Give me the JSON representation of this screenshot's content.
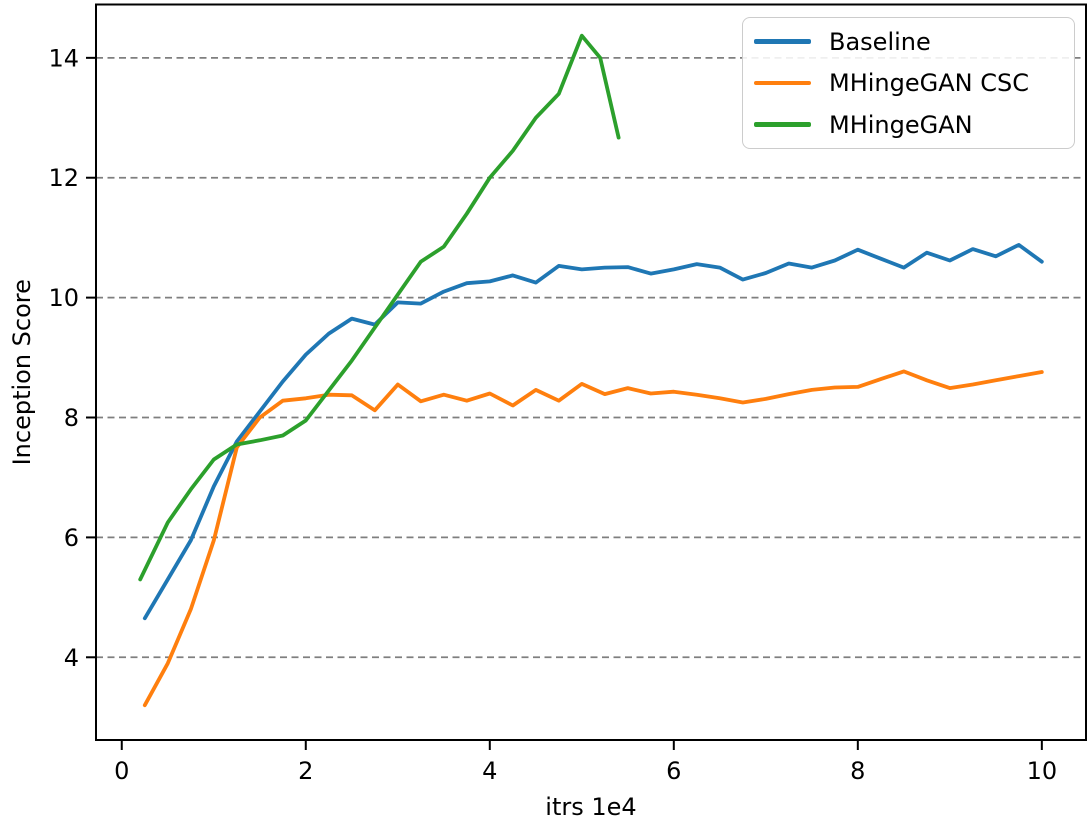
{
  "figure": {
    "background": "#ffffff"
  },
  "chart_data": {
    "type": "line",
    "title": "",
    "xlabel": "itrs 1e4",
    "ylabel": "Inception Score",
    "xlim": [
      -0.28,
      10.48
    ],
    "ylim": [
      2.62,
      14.89
    ],
    "grid": {
      "axis": "y",
      "style": "dashed",
      "color": "#7f7f7f"
    },
    "legend_position": "upper-right",
    "xticks": {
      "values": [
        0,
        2,
        4,
        6,
        8,
        10
      ],
      "labels": [
        "0",
        "2",
        "4",
        "6",
        "8",
        "10"
      ]
    },
    "yticks": {
      "values": [
        4,
        6,
        8,
        10,
        12,
        14
      ],
      "labels": [
        "4",
        "6",
        "8",
        "10",
        "12",
        "14"
      ]
    },
    "series": [
      {
        "name": "Baseline",
        "color": "#1f77b4",
        "x": [
          0.25,
          0.5,
          0.75,
          1.0,
          1.25,
          1.5,
          1.75,
          2.0,
          2.25,
          2.5,
          2.75,
          3.0,
          3.25,
          3.5,
          3.75,
          4.0,
          4.25,
          4.5,
          4.75,
          5.0,
          5.25,
          5.5,
          5.75,
          6.0,
          6.25,
          6.5,
          6.75,
          7.0,
          7.25,
          7.5,
          7.75,
          8.0,
          8.25,
          8.5,
          8.75,
          9.0,
          9.25,
          9.5,
          9.75,
          10.0
        ],
        "y": [
          4.65,
          5.3,
          5.95,
          6.85,
          7.6,
          8.1,
          8.6,
          9.05,
          9.4,
          9.65,
          9.55,
          9.92,
          9.9,
          10.1,
          10.24,
          10.27,
          10.37,
          10.25,
          10.53,
          10.47,
          10.5,
          10.51,
          10.4,
          10.47,
          10.56,
          10.5,
          10.3,
          10.41,
          10.57,
          10.5,
          10.62,
          10.8,
          10.65,
          10.5,
          10.75,
          10.62,
          10.81,
          10.69,
          10.88,
          10.6
        ]
      },
      {
        "name": "MHingeGAN CSC",
        "color": "#ff7f0e",
        "x": [
          0.25,
          0.5,
          0.75,
          1.0,
          1.25,
          1.5,
          1.75,
          2.0,
          2.25,
          2.5,
          2.75,
          3.0,
          3.25,
          3.5,
          3.75,
          4.0,
          4.25,
          4.5,
          4.75,
          5.0,
          5.25,
          5.5,
          5.75,
          6.0,
          6.25,
          6.5,
          6.75,
          7.0,
          7.25,
          7.5,
          7.75,
          8.0,
          8.25,
          8.5,
          8.75,
          9.0,
          9.25,
          9.5,
          9.75,
          10.0
        ],
        "y": [
          3.2,
          3.9,
          4.8,
          5.95,
          7.5,
          8.0,
          8.28,
          8.32,
          8.38,
          8.37,
          8.12,
          8.55,
          8.27,
          8.38,
          8.28,
          8.4,
          8.2,
          8.46,
          8.28,
          8.56,
          8.39,
          8.49,
          8.4,
          8.43,
          8.38,
          8.32,
          8.25,
          8.31,
          8.39,
          8.46,
          8.5,
          8.51,
          8.64,
          8.77,
          8.62,
          8.49,
          8.55,
          8.62,
          8.69,
          8.76
        ]
      },
      {
        "name": "MHingeGAN",
        "color": "#2ca02c",
        "x": [
          0.2,
          0.5,
          0.75,
          1.0,
          1.25,
          1.5,
          1.75,
          2.0,
          2.25,
          2.5,
          2.75,
          3.0,
          3.25,
          3.5,
          3.75,
          4.0,
          4.25,
          4.5,
          4.75,
          5.0,
          5.2,
          5.4
        ],
        "y": [
          5.3,
          6.25,
          6.8,
          7.3,
          7.55,
          7.62,
          7.7,
          7.95,
          8.45,
          8.95,
          9.5,
          10.05,
          10.6,
          10.85,
          11.4,
          12.0,
          12.45,
          13.0,
          13.4,
          14.37,
          14.0,
          12.67
        ]
      }
    ]
  }
}
